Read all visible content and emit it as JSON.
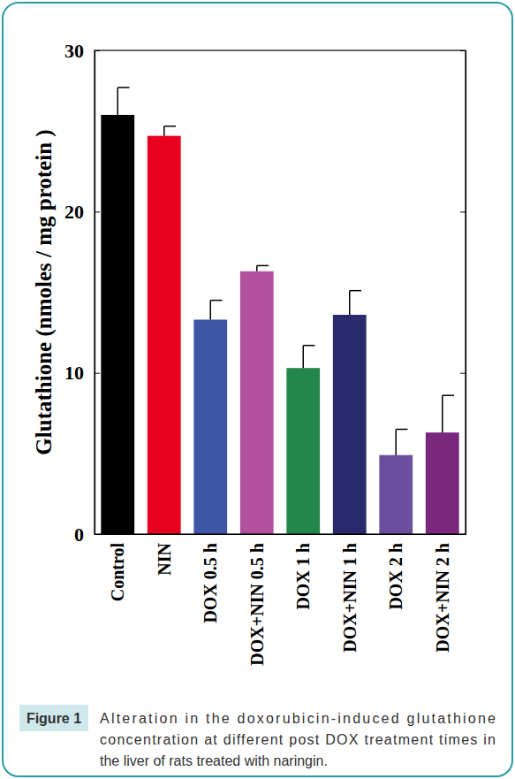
{
  "chart_data": {
    "type": "bar",
    "y_label": "Glutathione (nmoles / mg protein )",
    "categories": [
      "Control",
      "NIN",
      "DOX 0.5 h",
      "DOX+NIN 0.5 h",
      "DOX 1 h",
      "DOX+NIN 1 h",
      "DOX 2 h",
      "DOX+NIN 2 h"
    ],
    "values": [
      26.0,
      24.7,
      13.3,
      16.3,
      10.3,
      13.6,
      4.9,
      6.3
    ],
    "errors": [
      1.7,
      0.6,
      1.2,
      0.35,
      1.4,
      1.5,
      1.6,
      2.3
    ],
    "colors": [
      "#000000",
      "#e8001f",
      "#3f56a6",
      "#b4529f",
      "#23874a",
      "#282a6b",
      "#6a4f9e",
      "#7a277e"
    ],
    "ylim": [
      0,
      30
    ],
    "yticks": [
      0,
      10,
      20,
      30
    ],
    "grid": false
  },
  "figure": {
    "label": "Figure 1",
    "caption": [
      "Alteration in the doxorubicin-induced glutathione",
      "concentration at different post DOX treatment times in",
      "the liver of rats treated with naringin."
    ]
  }
}
